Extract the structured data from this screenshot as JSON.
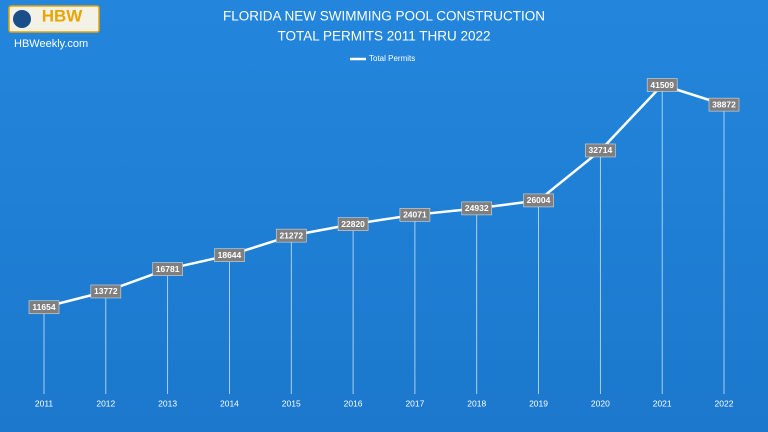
{
  "logo": "HBW",
  "site": "HBWeekly.com",
  "chart_data": {
    "type": "line",
    "title": "FLORIDA NEW SWIMMING POOL CONSTRUCTION",
    "subtitle": "TOTAL PERMITS 2011 THRU 2022",
    "categories": [
      "2011",
      "2012",
      "2013",
      "2014",
      "2015",
      "2016",
      "2017",
      "2018",
      "2019",
      "2020",
      "2021",
      "2022"
    ],
    "series": [
      {
        "name": "Total Permits",
        "color": "#ffffff",
        "values": [
          11654,
          13772,
          16781,
          18644,
          21272,
          22820,
          24071,
          24932,
          26004,
          32714,
          41509,
          38872
        ]
      }
    ],
    "legend": "top",
    "drop_lines": true
  }
}
